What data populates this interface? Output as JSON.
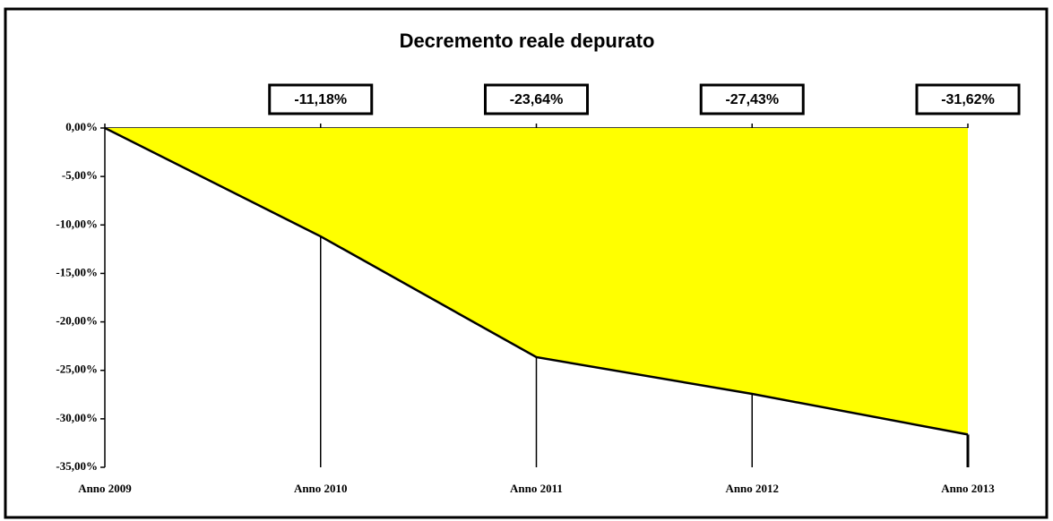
{
  "chart_data": {
    "type": "area",
    "title": "Decremento reale depurato",
    "categories": [
      "Anno 2009",
      "Anno 2010",
      "Anno 2011",
      "Anno 2012",
      "Anno 2013"
    ],
    "values": [
      0,
      -11.18,
      -23.64,
      -27.43,
      -31.62
    ],
    "value_labels": [
      null,
      "-11,18%",
      "-23,64%",
      "-27,43%",
      "-31,62%"
    ],
    "color": "#ffff00",
    "ylim": [
      -35,
      0
    ],
    "yticks": [
      {
        "value": 0,
        "label": "0,00%"
      },
      {
        "value": -5,
        "label": "-5,00%"
      },
      {
        "value": -10,
        "label": "-10,00%"
      },
      {
        "value": -15,
        "label": "-15,00%"
      },
      {
        "value": -20,
        "label": "-20,00%"
      },
      {
        "value": -25,
        "label": "-25,00%"
      },
      {
        "value": -30,
        "label": "-30,00%"
      },
      {
        "value": -35,
        "label": "-35,00%"
      }
    ]
  }
}
